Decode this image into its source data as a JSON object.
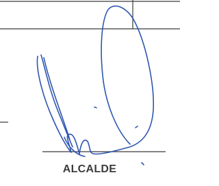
{
  "signature_label": "ALCALDE"
}
